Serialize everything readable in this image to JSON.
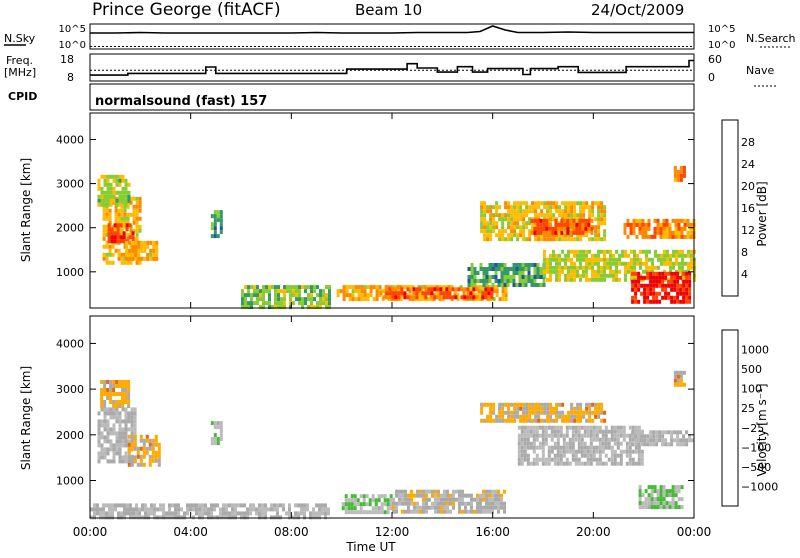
{
  "header": {
    "title": "Prince George (fitACF)",
    "beam": "Beam 10",
    "date": "24/Oct/2009"
  },
  "left_labels": {
    "nsky": "N.Sky",
    "freq": "Freq.",
    "freq_unit": "[MHz]",
    "cpid": "CPID"
  },
  "right_labels": {
    "nsearch": "N.Search",
    "nave": "Nave"
  },
  "cpid_text": "normalsound (fast) 157",
  "noise_panel": {
    "left_ticks": [
      "10^5",
      "10^0"
    ],
    "right_ticks": [
      "10^5",
      "10^0"
    ]
  },
  "freq_panel": {
    "left_ticks": [
      "18",
      "8"
    ],
    "right_ticks": [
      "60",
      "0"
    ]
  },
  "power_panel": {
    "ylabel": "Slant Range [km]",
    "yticks": [
      "4000",
      "3000",
      "2000",
      "1000"
    ],
    "colorbar_label": "Power [dB]",
    "colorbar_ticks": [
      "28",
      "24",
      "20",
      "16",
      "12",
      "8",
      "4"
    ]
  },
  "velocity_panel": {
    "ylabel": "Slant Range [km]",
    "yticks": [
      "4000",
      "3000",
      "2000",
      "1000"
    ],
    "colorbar_label": "Velocity [m s⁻¹]",
    "colorbar_ticks": [
      "1000",
      "500",
      "100",
      "25",
      "−25",
      "−100",
      "−500",
      "−1000"
    ]
  },
  "xaxis": {
    "ticks": [
      "00:00",
      "04:00",
      "08:00",
      "12:00",
      "16:00",
      "20:00",
      "00:00"
    ],
    "label": "Time UT"
  },
  "colors": {
    "power_scale": [
      "#ee0000",
      "#ff4400",
      "#ff8800",
      "#ffbb00",
      "#88cc33",
      "#339966",
      "#2255aa",
      "#0000dd"
    ],
    "velocity_scale": [
      "#1a2aa0",
      "#2a8a7a",
      "#44bb33",
      "#bbbbbb",
      "#aaaaaa",
      "#ffaa00",
      "#ee6600",
      "#ee0000"
    ]
  },
  "chart_data": [
    {
      "type": "line",
      "panel": "noise",
      "series": [
        {
          "name": "N.Sky",
          "x": [
            0,
            1,
            2,
            3,
            4,
            5,
            6,
            7,
            8,
            9,
            10,
            11,
            12,
            13,
            14,
            15,
            15.5,
            16,
            16.5,
            17,
            18,
            19,
            20,
            21,
            22,
            23,
            24
          ],
          "y": [
            3.2,
            3.2,
            3.3,
            3.2,
            3.2,
            3.2,
            3.2,
            3.2,
            3.2,
            3.3,
            3.2,
            3.2,
            3.2,
            3.3,
            3.3,
            3.3,
            3.5,
            4.6,
            3.8,
            3.3,
            3.3,
            3.4,
            3.3,
            3.3,
            3.3,
            3.3,
            3.3
          ]
        },
        {
          "name": "N.Search",
          "x": [
            0,
            24
          ],
          "y": [
            0.5,
            0.5
          ]
        }
      ],
      "ylim": [
        0,
        5
      ]
    },
    {
      "type": "line",
      "panel": "frequency",
      "series": [
        {
          "name": "Freq.",
          "x": [
            0,
            1.5,
            1.5,
            4.6,
            4.6,
            5.0,
            5.0,
            10.2,
            10.2,
            12.6,
            12.6,
            13.0,
            13.0,
            13.8,
            13.8,
            14.6,
            14.6,
            15.2,
            15.2,
            15.8,
            15.8,
            17.2,
            17.2,
            17.5,
            17.5,
            18.6,
            18.6,
            19.4,
            19.4,
            21.3,
            21.3,
            23.8,
            23.8,
            24
          ],
          "y": [
            10.2,
            10.2,
            10.8,
            10.8,
            13.2,
            13.2,
            10.8,
            10.8,
            12.4,
            12.4,
            14.4,
            14.4,
            12.8,
            12.8,
            11.3,
            11.3,
            13.3,
            13.3,
            11.3,
            11.3,
            12.6,
            12.6,
            10.4,
            10.4,
            12.6,
            12.6,
            13.3,
            13.3,
            11.2,
            11.2,
            13.3,
            13.3,
            15.6,
            15.6
          ]
        },
        {
          "name": "Nave",
          "x": [
            0,
            24
          ],
          "y": [
            12.0,
            12.0
          ]
        }
      ],
      "ylim": [
        8,
        18
      ]
    },
    {
      "type": "heatmap",
      "panel": "power",
      "title": "",
      "xlabel": "",
      "ylabel": "Slant Range [km]",
      "xlim": [
        0,
        24
      ],
      "ylim": [
        180,
        4600
      ],
      "zlim": [
        0,
        30
      ],
      "patches": [
        {
          "t": [
            0.5,
            2.0
          ],
          "r": [
            1200,
            2700
          ],
          "z": 17
        },
        {
          "t": [
            0.7,
            1.7
          ],
          "r": [
            1700,
            2100
          ],
          "z": 26
        },
        {
          "t": [
            0.3,
            1.6
          ],
          "r": [
            2500,
            3200
          ],
          "z": 14
        },
        {
          "t": [
            1.4,
            2.6
          ],
          "r": [
            1300,
            1700
          ],
          "z": 18
        },
        {
          "t": [
            4.8,
            5.2
          ],
          "r": [
            1800,
            2400
          ],
          "z": 9
        },
        {
          "t": [
            6.0,
            9.5
          ],
          "r": [
            200,
            700
          ],
          "z": 13
        },
        {
          "t": [
            9.8,
            16.5
          ],
          "r": [
            350,
            700
          ],
          "z": 18
        },
        {
          "t": [
            11.5,
            16.0
          ],
          "r": [
            450,
            650
          ],
          "z": 24
        },
        {
          "t": [
            15.0,
            18.0
          ],
          "r": [
            700,
            1200
          ],
          "z": 10
        },
        {
          "t": [
            15.5,
            20.5
          ],
          "r": [
            1700,
            2600
          ],
          "z": 17
        },
        {
          "t": [
            17.5,
            20.0
          ],
          "r": [
            1900,
            2200
          ],
          "z": 24
        },
        {
          "t": [
            18.0,
            24.0
          ],
          "r": [
            800,
            1500
          ],
          "z": 15
        },
        {
          "t": [
            21.5,
            23.8
          ],
          "r": [
            350,
            1000
          ],
          "z": 27
        },
        {
          "t": [
            21.2,
            24.0
          ],
          "r": [
            1800,
            2200
          ],
          "z": 21
        },
        {
          "t": [
            23.2,
            23.6
          ],
          "r": [
            3100,
            3400
          ],
          "z": 22
        }
      ]
    },
    {
      "type": "heatmap",
      "panel": "velocity",
      "title": "",
      "xlabel": "Time UT",
      "ylabel": "Slant Range [km]",
      "xlim": [
        0,
        24
      ],
      "ylim": [
        180,
        4600
      ],
      "zlim": [
        -1000,
        1000
      ],
      "patches": [
        {
          "t": [
            0.3,
            1.8
          ],
          "r": [
            1400,
            2600
          ],
          "z": 0
        },
        {
          "t": [
            1.5,
            2.8
          ],
          "r": [
            1300,
            2000
          ],
          "z": -300
        },
        {
          "t": [
            0.4,
            1.5
          ],
          "r": [
            2600,
            3200
          ],
          "z": -300
        },
        {
          "t": [
            4.8,
            5.2
          ],
          "r": [
            1800,
            2300
          ],
          "z": 150
        },
        {
          "t": [
            0.0,
            9.5
          ],
          "r": [
            200,
            500
          ],
          "z": 0
        },
        {
          "t": [
            10.0,
            12.0
          ],
          "r": [
            300,
            700
          ],
          "z": 200
        },
        {
          "t": [
            12.0,
            16.5
          ],
          "r": [
            300,
            800
          ],
          "z": -80
        },
        {
          "t": [
            15.5,
            20.5
          ],
          "r": [
            2300,
            2700
          ],
          "z": -300
        },
        {
          "t": [
            17.0,
            22.0
          ],
          "r": [
            1400,
            2200
          ],
          "z": 0
        },
        {
          "t": [
            21.5,
            24.0
          ],
          "r": [
            1800,
            2100
          ],
          "z": 0
        },
        {
          "t": [
            21.8,
            23.5
          ],
          "r": [
            400,
            900
          ],
          "z": 200
        },
        {
          "t": [
            23.2,
            23.6
          ],
          "r": [
            3100,
            3400
          ],
          "z": -300
        }
      ]
    }
  ]
}
